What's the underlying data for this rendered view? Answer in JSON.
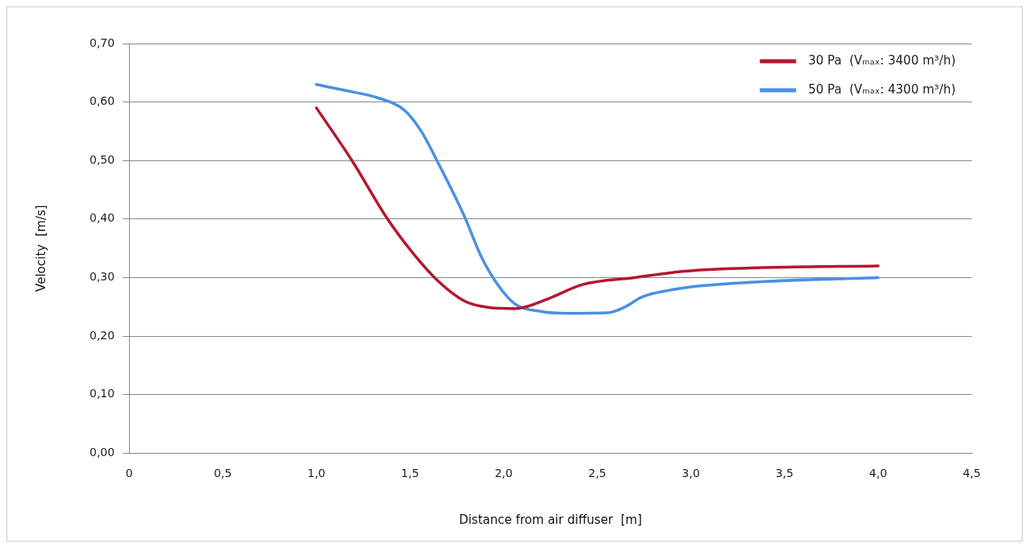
{
  "chart_data": {
    "type": "line",
    "xlabel": "Distance from air diffuser  [m]",
    "ylabel": "Velocity  [m/s]",
    "series": [
      {
        "name": "30 Pa  (Vₘₐₓ: 3400 m³/h)",
        "color": "#b5172f",
        "x": [
          1.0,
          1.19,
          1.38,
          1.52,
          1.65,
          1.79,
          1.92,
          2.06,
          2.24,
          2.42,
          2.7,
          2.97,
          3.38,
          4.0
        ],
        "values": [
          0.59,
          0.5,
          0.4,
          0.34,
          0.294,
          0.26,
          0.249,
          0.247,
          0.264,
          0.288,
          0.3,
          0.311,
          0.317,
          0.32
        ]
      },
      {
        "name": "50 Pa  (Vₘₐₓ: 4300 m³/h)",
        "color": "#4a90e2",
        "x": [
          1.0,
          1.15,
          1.33,
          1.47,
          1.56,
          1.65,
          1.79,
          1.88,
          1.97,
          2.06,
          2.2,
          2.33,
          2.56,
          2.65,
          2.74,
          2.88,
          3.06,
          3.38,
          4.0
        ],
        "values": [
          0.63,
          0.62,
          0.607,
          0.586,
          0.55,
          0.496,
          0.405,
          0.336,
          0.287,
          0.255,
          0.242,
          0.239,
          0.24,
          0.25,
          0.267,
          0.278,
          0.286,
          0.293,
          0.3
        ]
      }
    ],
    "xlim": [
      0,
      4.5
    ],
    "xticks": [
      0,
      {
        "value": 0.5,
        "label": "0,5"
      },
      {
        "value": 1,
        "label": "1,0"
      },
      {
        "value": 1.5,
        "label": "1,5"
      },
      {
        "value": 2,
        "label": "2,0"
      },
      {
        "value": 2.5,
        "label": "2,5"
      },
      {
        "value": 3,
        "label": "3,0"
      },
      {
        "value": 3.5,
        "label": "3,5"
      },
      {
        "value": 4,
        "label": "4,0"
      },
      {
        "value": 4.5,
        "label": "4,5"
      }
    ],
    "ylim": [
      0,
      0.7
    ],
    "yticks": [
      {
        "value": 0,
        "label": "0,00"
      },
      {
        "value": 0.1,
        "label": "0,10"
      },
      {
        "value": 0.2,
        "label": "0,20"
      },
      {
        "value": 0.3,
        "label": "0,30"
      },
      {
        "value": 0.4,
        "label": "0,40"
      },
      {
        "value": 0.5,
        "label": "0,50"
      },
      {
        "value": 0.6,
        "label": "0,60"
      },
      {
        "value": 0.7,
        "label": "0,70"
      }
    ],
    "grid": "y",
    "legend": "top right",
    "marker": "none",
    "line_style": "solid"
  }
}
